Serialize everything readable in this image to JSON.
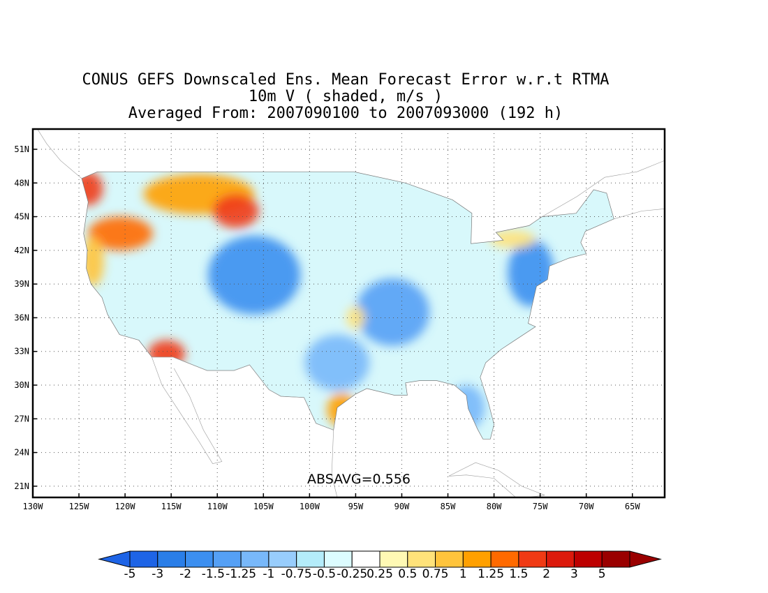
{
  "title": {
    "line1": "CONUS GEFS Downscaled Ens. Mean Forecast Error w.r.t RTMA",
    "line2": "10m V ( shaded, m/s )",
    "line3": "Averaged From: 2007090100 to 2007093000 (192 h)"
  },
  "stat_label": "ABSAVG=0.556",
  "axes": {
    "lat_labels": [
      "51N",
      "48N",
      "45N",
      "42N",
      "39N",
      "36N",
      "33N",
      "30N",
      "27N",
      "24N",
      "21N"
    ],
    "lon_labels": [
      "130W",
      "125W",
      "120W",
      "115W",
      "110W",
      "105W",
      "100W",
      "95W",
      "90W",
      "85W",
      "80W",
      "75W",
      "70W",
      "65W"
    ],
    "lat_range": [
      20.0,
      52.8
    ],
    "lon_range": [
      -130.0,
      -61.5
    ],
    "grid": "dotted"
  },
  "colorbar": {
    "labels": [
      "-5",
      "-3",
      "-2",
      "-1.5",
      "-1.25",
      "-1",
      "-0.75",
      "-0.5",
      "-0.25",
      "0.25",
      "0.5",
      "0.75",
      "1",
      "1.25",
      "1.5",
      "2",
      "3",
      "5"
    ],
    "colors": [
      "#1e64e6",
      "#2a7ee8",
      "#3c8ff0",
      "#55a0f5",
      "#78b8fa",
      "#98cdfc",
      "#b4ecfa",
      "#dcfcff",
      "#ffffff",
      "#fff9b4",
      "#ffe27a",
      "#ffc43c",
      "#ffa000",
      "#ff6a00",
      "#f03a14",
      "#dc1a0c",
      "#bd0000",
      "#9a0000"
    ]
  },
  "shading": [
    {
      "lon": -124.0,
      "lat": 47.5,
      "rx": 1.6,
      "ry": 1.5,
      "color": "#f03a14"
    },
    {
      "lon": -120.5,
      "lat": 43.5,
      "rx": 3.5,
      "ry": 1.5,
      "color": "#ff6a00"
    },
    {
      "lon": -112.0,
      "lat": 47.0,
      "rx": 6.0,
      "ry": 1.8,
      "color": "#ffa000"
    },
    {
      "lon": -108.0,
      "lat": 45.5,
      "rx": 2.5,
      "ry": 1.5,
      "color": "#f03a14"
    },
    {
      "lon": -123.5,
      "lat": 41.0,
      "rx": 1.2,
      "ry": 2.2,
      "color": "#ffc43c"
    },
    {
      "lon": -115.5,
      "lat": 32.8,
      "rx": 2.0,
      "ry": 1.2,
      "color": "#f03a14"
    },
    {
      "lon": -96.5,
      "lat": 27.8,
      "rx": 1.6,
      "ry": 1.5,
      "color": "#ffa000"
    },
    {
      "lon": -106.0,
      "lat": 39.8,
      "rx": 5.0,
      "ry": 3.5,
      "color": "#3c8ff0"
    },
    {
      "lon": -91.0,
      "lat": 36.5,
      "rx": 4.0,
      "ry": 3.0,
      "color": "#55a0f5"
    },
    {
      "lon": -76.0,
      "lat": 40.0,
      "rx": 2.5,
      "ry": 3.0,
      "color": "#3c8ff0"
    },
    {
      "lon": -97.0,
      "lat": 32.0,
      "rx": 3.5,
      "ry": 2.5,
      "color": "#78b8fa"
    },
    {
      "lon": -83.0,
      "lat": 28.0,
      "rx": 2.0,
      "ry": 2.0,
      "color": "#78b8fa"
    },
    {
      "lon": -78.0,
      "lat": 43.0,
      "rx": 2.5,
      "ry": 0.8,
      "color": "#ffe27a"
    },
    {
      "lon": -95.0,
      "lat": 36.0,
      "rx": 1.0,
      "ry": 1.0,
      "color": "#ffe27a"
    }
  ]
}
